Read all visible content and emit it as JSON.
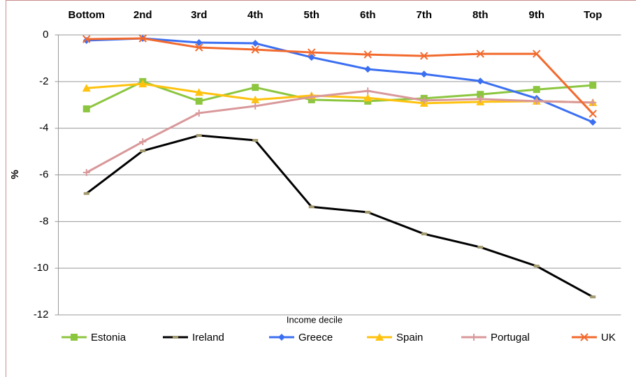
{
  "chart_data": {
    "type": "line",
    "categories": [
      "Bottom",
      "2nd",
      "3rd",
      "4th",
      "5th",
      "6th",
      "7th",
      "8th",
      "9th",
      "Top"
    ],
    "x_label": "Income decile",
    "y_label": "%",
    "ylim": [
      -12,
      0
    ],
    "yticks": [
      0,
      -2,
      -4,
      -6,
      -8,
      -10,
      -12
    ],
    "grid": true,
    "legend": "bottom",
    "series": [
      {
        "name": "Estonia",
        "color": "#8cc63f",
        "marker": "square",
        "values": [
          -3.17,
          -2.0,
          -2.84,
          -2.25,
          -2.78,
          -2.84,
          -2.72,
          -2.55,
          -2.34,
          -2.16
        ]
      },
      {
        "name": "Ireland",
        "color": "#000000",
        "marker": "dash",
        "values": [
          -6.8,
          -4.97,
          -4.31,
          -4.52,
          -7.37,
          -7.6,
          -8.53,
          -9.1,
          -9.91,
          -11.23
        ]
      },
      {
        "name": "Greece",
        "color": "#3b6ff2",
        "marker": "diamond",
        "values": [
          -0.24,
          -0.15,
          -0.33,
          -0.36,
          -0.96,
          -1.47,
          -1.68,
          -1.98,
          -2.72,
          -3.74
        ]
      },
      {
        "name": "Spain",
        "color": "#ffc20e",
        "marker": "triangle",
        "values": [
          -2.28,
          -2.1,
          -2.46,
          -2.78,
          -2.6,
          -2.7,
          -2.93,
          -2.87,
          -2.84,
          -2.9
        ]
      },
      {
        "name": "Portugal",
        "color": "#d9989a",
        "marker": "plus",
        "values": [
          -5.9,
          -4.58,
          -3.35,
          -3.05,
          -2.66,
          -2.4,
          -2.81,
          -2.75,
          -2.84,
          -2.9
        ]
      },
      {
        "name": "UK",
        "color": "#f26a2e",
        "marker": "x",
        "values": [
          -0.18,
          -0.15,
          -0.54,
          -0.63,
          -0.75,
          -0.84,
          -0.9,
          -0.81,
          -0.81,
          -3.38
        ]
      }
    ]
  }
}
